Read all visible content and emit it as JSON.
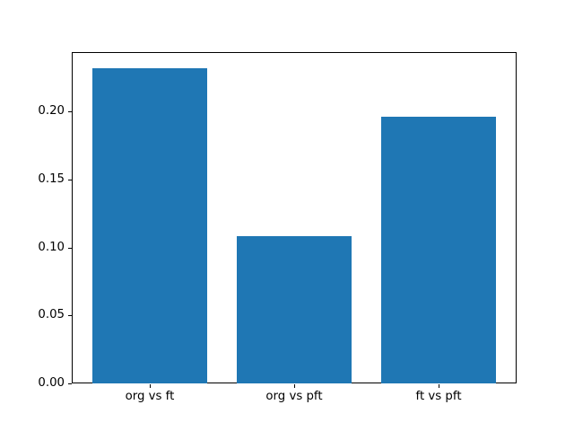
{
  "chart_data": {
    "type": "bar",
    "categories": [
      "org vs ft",
      "org vs pft",
      "ft vs pft"
    ],
    "values": [
      0.232,
      0.108,
      0.196
    ],
    "title": "",
    "xlabel": "",
    "ylabel": "",
    "ylim": [
      0,
      0.2436
    ],
    "xlim": [
      -0.54,
      2.54
    ],
    "ytick_values": [
      0.0,
      0.05,
      0.1,
      0.15,
      0.2
    ],
    "ytick_labels": [
      "0.00",
      "0.05",
      "0.10",
      "0.15",
      "0.20"
    ],
    "bar_width": 0.8,
    "bar_color": "#1f77b4",
    "axes_edge_color": "#000000",
    "background_color": "#ffffff",
    "grid": false,
    "legend": null
  }
}
